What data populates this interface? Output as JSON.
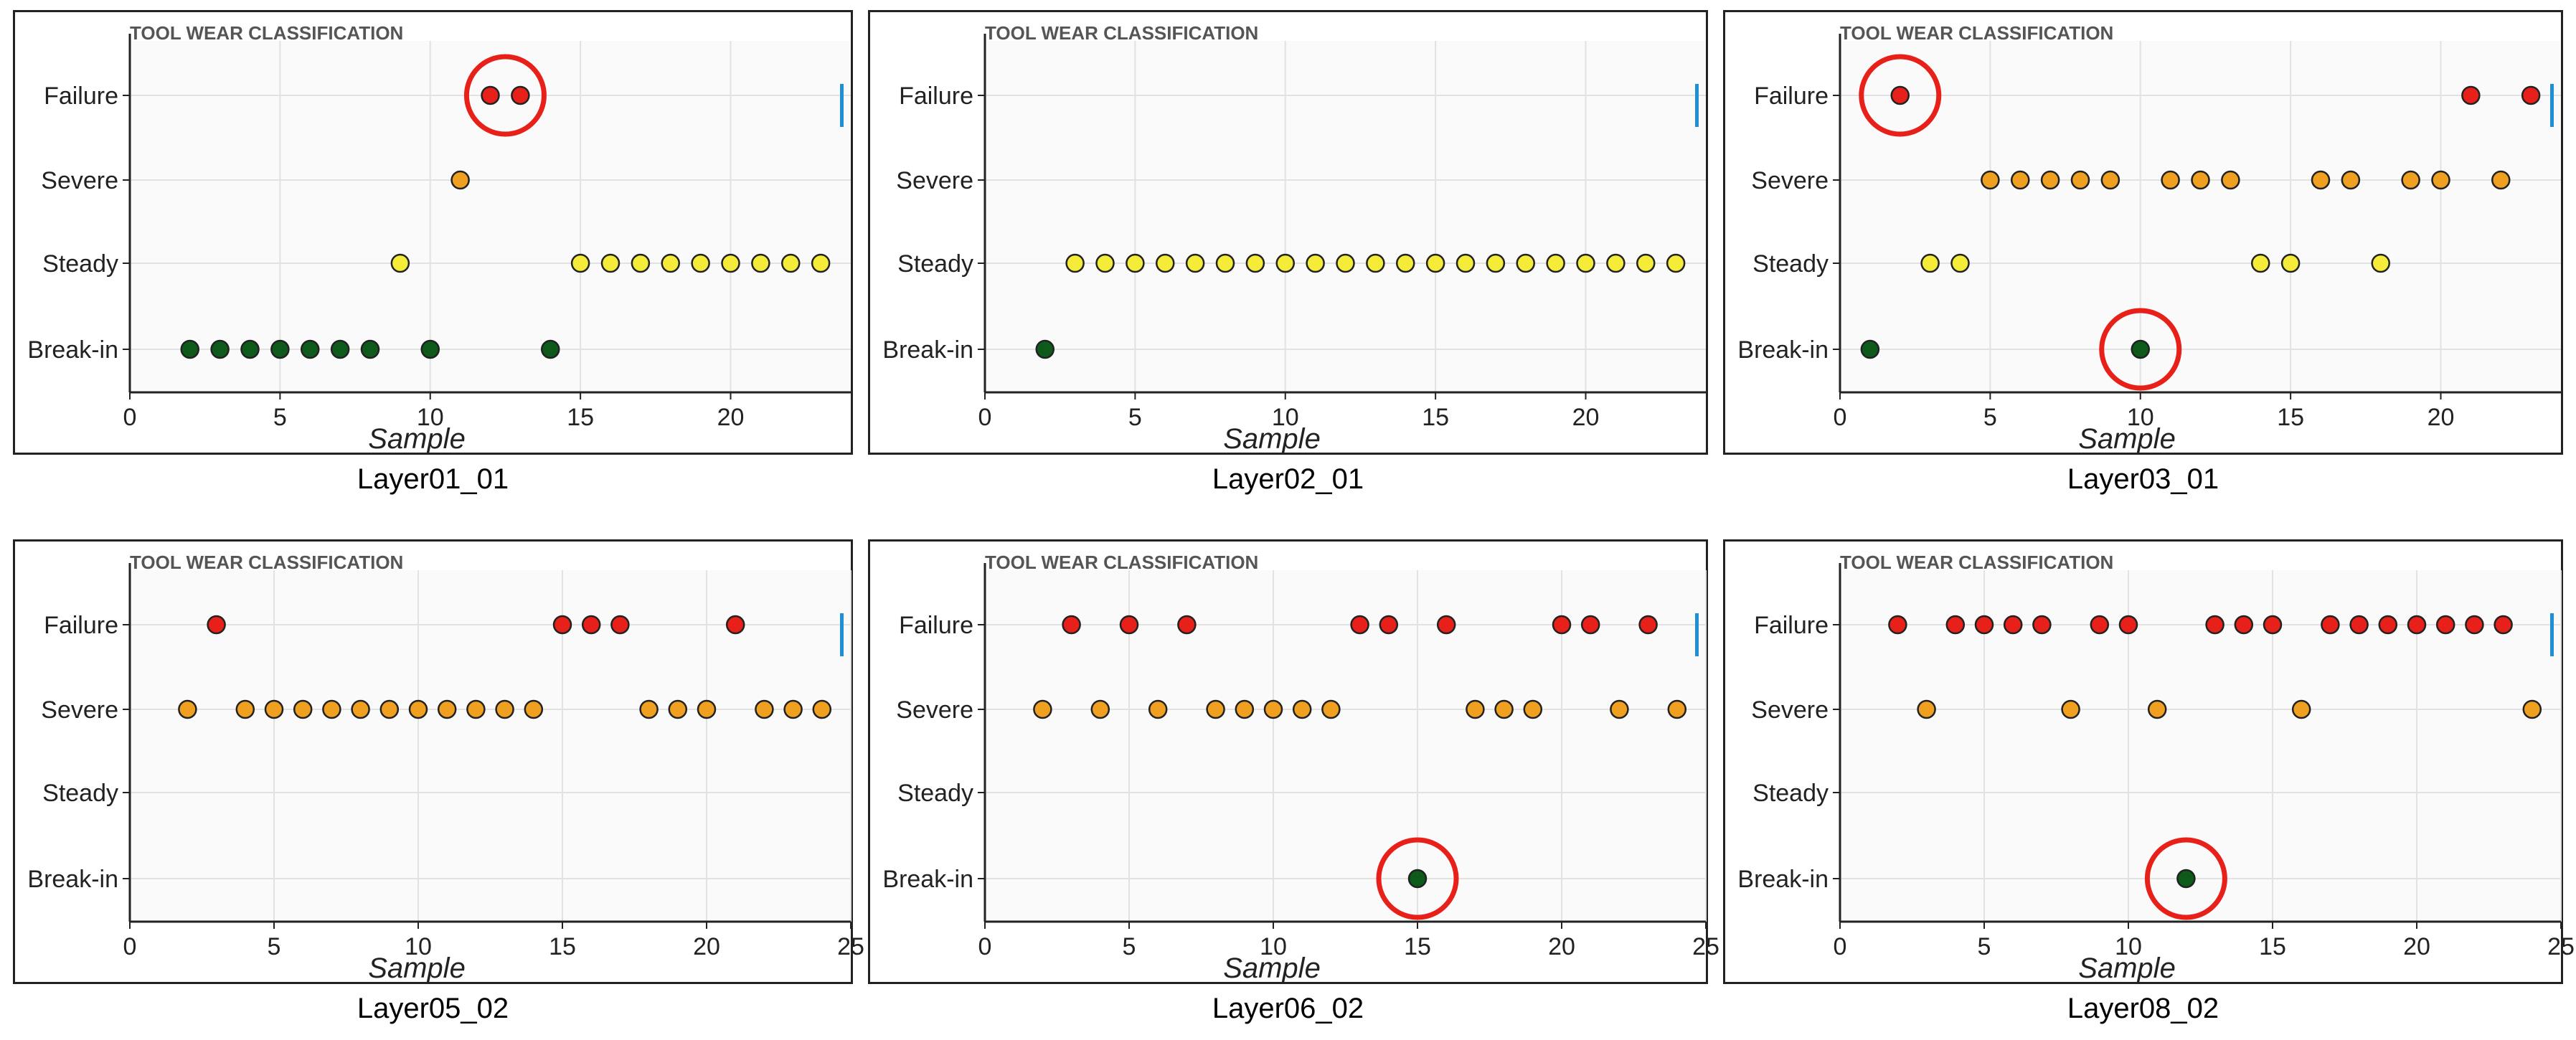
{
  "figure": {
    "accent_color": "#1f8fd6"
  },
  "marker_colors": {
    "Break-in": "#0d5a1a",
    "Steady": "#f5ec3a",
    "Severe": "#f0a020",
    "Failure": "#e8201a",
    "highlight_circle": "#e8201a"
  },
  "chart_data": [
    {
      "type": "scatter",
      "title": "TOOL WEAR CLASSIFICATION",
      "caption": "Layer01_01",
      "xlabel": "Sample",
      "ylabel": "",
      "categories": [
        "Break-in",
        "Steady",
        "Severe",
        "Failure"
      ],
      "xlim": [
        0,
        24
      ],
      "xticks": [
        0,
        5,
        10,
        15,
        20
      ],
      "grid": true,
      "points": [
        {
          "x": 2,
          "y": "Break-in"
        },
        {
          "x": 3,
          "y": "Break-in"
        },
        {
          "x": 4,
          "y": "Break-in"
        },
        {
          "x": 5,
          "y": "Break-in"
        },
        {
          "x": 6,
          "y": "Break-in"
        },
        {
          "x": 7,
          "y": "Break-in"
        },
        {
          "x": 8,
          "y": "Break-in"
        },
        {
          "x": 9,
          "y": "Steady"
        },
        {
          "x": 10,
          "y": "Break-in"
        },
        {
          "x": 11,
          "y": "Severe"
        },
        {
          "x": 12,
          "y": "Failure"
        },
        {
          "x": 13,
          "y": "Failure"
        },
        {
          "x": 14,
          "y": "Break-in"
        },
        {
          "x": 15,
          "y": "Steady"
        },
        {
          "x": 16,
          "y": "Steady"
        },
        {
          "x": 17,
          "y": "Steady"
        },
        {
          "x": 18,
          "y": "Steady"
        },
        {
          "x": 19,
          "y": "Steady"
        },
        {
          "x": 20,
          "y": "Steady"
        },
        {
          "x": 21,
          "y": "Steady"
        },
        {
          "x": 22,
          "y": "Steady"
        },
        {
          "x": 23,
          "y": "Steady"
        }
      ],
      "highlights": [
        {
          "x": 12.5,
          "y": "Failure"
        }
      ]
    },
    {
      "type": "scatter",
      "title": "TOOL WEAR CLASSIFICATION",
      "caption": "Layer02_01",
      "xlabel": "Sample",
      "ylabel": "",
      "categories": [
        "Break-in",
        "Steady",
        "Severe",
        "Failure"
      ],
      "xlim": [
        0,
        24
      ],
      "xticks": [
        0,
        5,
        10,
        15,
        20
      ],
      "grid": true,
      "points": [
        {
          "x": 2,
          "y": "Break-in"
        },
        {
          "x": 3,
          "y": "Steady"
        },
        {
          "x": 4,
          "y": "Steady"
        },
        {
          "x": 5,
          "y": "Steady"
        },
        {
          "x": 6,
          "y": "Steady"
        },
        {
          "x": 7,
          "y": "Steady"
        },
        {
          "x": 8,
          "y": "Steady"
        },
        {
          "x": 9,
          "y": "Steady"
        },
        {
          "x": 10,
          "y": "Steady"
        },
        {
          "x": 11,
          "y": "Steady"
        },
        {
          "x": 12,
          "y": "Steady"
        },
        {
          "x": 13,
          "y": "Steady"
        },
        {
          "x": 14,
          "y": "Steady"
        },
        {
          "x": 15,
          "y": "Steady"
        },
        {
          "x": 16,
          "y": "Steady"
        },
        {
          "x": 17,
          "y": "Steady"
        },
        {
          "x": 18,
          "y": "Steady"
        },
        {
          "x": 19,
          "y": "Steady"
        },
        {
          "x": 20,
          "y": "Steady"
        },
        {
          "x": 21,
          "y": "Steady"
        },
        {
          "x": 22,
          "y": "Steady"
        },
        {
          "x": 23,
          "y": "Steady"
        }
      ],
      "highlights": []
    },
    {
      "type": "scatter",
      "title": "TOOL WEAR CLASSIFICATION",
      "caption": "Layer03_01",
      "xlabel": "Sample",
      "ylabel": "",
      "categories": [
        "Break-in",
        "Steady",
        "Severe",
        "Failure"
      ],
      "xlim": [
        0,
        24
      ],
      "xticks": [
        0,
        5,
        10,
        15,
        20
      ],
      "grid": true,
      "points": [
        {
          "x": 1,
          "y": "Break-in"
        },
        {
          "x": 2,
          "y": "Failure"
        },
        {
          "x": 3,
          "y": "Steady"
        },
        {
          "x": 4,
          "y": "Steady"
        },
        {
          "x": 5,
          "y": "Severe"
        },
        {
          "x": 6,
          "y": "Severe"
        },
        {
          "x": 7,
          "y": "Severe"
        },
        {
          "x": 8,
          "y": "Severe"
        },
        {
          "x": 9,
          "y": "Severe"
        },
        {
          "x": 10,
          "y": "Break-in"
        },
        {
          "x": 11,
          "y": "Severe"
        },
        {
          "x": 12,
          "y": "Severe"
        },
        {
          "x": 13,
          "y": "Severe"
        },
        {
          "x": 14,
          "y": "Steady"
        },
        {
          "x": 15,
          "y": "Steady"
        },
        {
          "x": 16,
          "y": "Severe"
        },
        {
          "x": 17,
          "y": "Severe"
        },
        {
          "x": 18,
          "y": "Steady"
        },
        {
          "x": 19,
          "y": "Severe"
        },
        {
          "x": 20,
          "y": "Severe"
        },
        {
          "x": 21,
          "y": "Failure"
        },
        {
          "x": 22,
          "y": "Severe"
        },
        {
          "x": 23,
          "y": "Failure"
        }
      ],
      "highlights": [
        {
          "x": 2,
          "y": "Failure"
        },
        {
          "x": 10,
          "y": "Break-in"
        }
      ]
    },
    {
      "type": "scatter",
      "title": "TOOL WEAR CLASSIFICATION",
      "caption": "Layer05_02",
      "xlabel": "Sample",
      "ylabel": "",
      "categories": [
        "Break-in",
        "Steady",
        "Severe",
        "Failure"
      ],
      "xlim": [
        0,
        25
      ],
      "xticks": [
        0,
        5,
        10,
        15,
        20,
        25
      ],
      "grid": true,
      "points": [
        {
          "x": 2,
          "y": "Severe"
        },
        {
          "x": 3,
          "y": "Failure"
        },
        {
          "x": 4,
          "y": "Severe"
        },
        {
          "x": 5,
          "y": "Severe"
        },
        {
          "x": 6,
          "y": "Severe"
        },
        {
          "x": 7,
          "y": "Severe"
        },
        {
          "x": 8,
          "y": "Severe"
        },
        {
          "x": 9,
          "y": "Severe"
        },
        {
          "x": 10,
          "y": "Severe"
        },
        {
          "x": 11,
          "y": "Severe"
        },
        {
          "x": 12,
          "y": "Severe"
        },
        {
          "x": 13,
          "y": "Severe"
        },
        {
          "x": 14,
          "y": "Severe"
        },
        {
          "x": 15,
          "y": "Failure"
        },
        {
          "x": 16,
          "y": "Failure"
        },
        {
          "x": 17,
          "y": "Failure"
        },
        {
          "x": 18,
          "y": "Severe"
        },
        {
          "x": 19,
          "y": "Severe"
        },
        {
          "x": 20,
          "y": "Severe"
        },
        {
          "x": 21,
          "y": "Failure"
        },
        {
          "x": 22,
          "y": "Severe"
        },
        {
          "x": 23,
          "y": "Severe"
        },
        {
          "x": 24,
          "y": "Severe"
        }
      ],
      "highlights": []
    },
    {
      "type": "scatter",
      "title": "TOOL WEAR CLASSIFICATION",
      "caption": "Layer06_02",
      "xlabel": "Sample",
      "ylabel": "",
      "categories": [
        "Break-in",
        "Steady",
        "Severe",
        "Failure"
      ],
      "xlim": [
        0,
        25
      ],
      "xticks": [
        0,
        5,
        10,
        15,
        20,
        25
      ],
      "grid": true,
      "points": [
        {
          "x": 2,
          "y": "Severe"
        },
        {
          "x": 3,
          "y": "Failure"
        },
        {
          "x": 4,
          "y": "Severe"
        },
        {
          "x": 5,
          "y": "Failure"
        },
        {
          "x": 6,
          "y": "Severe"
        },
        {
          "x": 7,
          "y": "Failure"
        },
        {
          "x": 8,
          "y": "Severe"
        },
        {
          "x": 9,
          "y": "Severe"
        },
        {
          "x": 10,
          "y": "Severe"
        },
        {
          "x": 11,
          "y": "Severe"
        },
        {
          "x": 12,
          "y": "Severe"
        },
        {
          "x": 13,
          "y": "Failure"
        },
        {
          "x": 14,
          "y": "Failure"
        },
        {
          "x": 15,
          "y": "Break-in"
        },
        {
          "x": 16,
          "y": "Failure"
        },
        {
          "x": 17,
          "y": "Severe"
        },
        {
          "x": 18,
          "y": "Severe"
        },
        {
          "x": 19,
          "y": "Severe"
        },
        {
          "x": 20,
          "y": "Failure"
        },
        {
          "x": 21,
          "y": "Failure"
        },
        {
          "x": 22,
          "y": "Severe"
        },
        {
          "x": 23,
          "y": "Failure"
        },
        {
          "x": 24,
          "y": "Severe"
        }
      ],
      "highlights": [
        {
          "x": 15,
          "y": "Break-in"
        }
      ]
    },
    {
      "type": "scatter",
      "title": "TOOL WEAR CLASSIFICATION",
      "caption": "Layer08_02",
      "xlabel": "Sample",
      "ylabel": "",
      "categories": [
        "Break-in",
        "Steady",
        "Severe",
        "Failure"
      ],
      "xlim": [
        0,
        25
      ],
      "xticks": [
        0,
        5,
        10,
        15,
        20,
        25
      ],
      "grid": true,
      "points": [
        {
          "x": 2,
          "y": "Failure"
        },
        {
          "x": 3,
          "y": "Severe"
        },
        {
          "x": 4,
          "y": "Failure"
        },
        {
          "x": 5,
          "y": "Failure"
        },
        {
          "x": 6,
          "y": "Failure"
        },
        {
          "x": 7,
          "y": "Failure"
        },
        {
          "x": 8,
          "y": "Severe"
        },
        {
          "x": 9,
          "y": "Failure"
        },
        {
          "x": 10,
          "y": "Failure"
        },
        {
          "x": 11,
          "y": "Severe"
        },
        {
          "x": 12,
          "y": "Break-in"
        },
        {
          "x": 13,
          "y": "Failure"
        },
        {
          "x": 14,
          "y": "Failure"
        },
        {
          "x": 15,
          "y": "Failure"
        },
        {
          "x": 16,
          "y": "Severe"
        },
        {
          "x": 17,
          "y": "Failure"
        },
        {
          "x": 18,
          "y": "Failure"
        },
        {
          "x": 19,
          "y": "Failure"
        },
        {
          "x": 20,
          "y": "Failure"
        },
        {
          "x": 21,
          "y": "Failure"
        },
        {
          "x": 22,
          "y": "Failure"
        },
        {
          "x": 23,
          "y": "Failure"
        },
        {
          "x": 24,
          "y": "Severe"
        }
      ],
      "highlights": [
        {
          "x": 12,
          "y": "Break-in"
        }
      ]
    }
  ]
}
